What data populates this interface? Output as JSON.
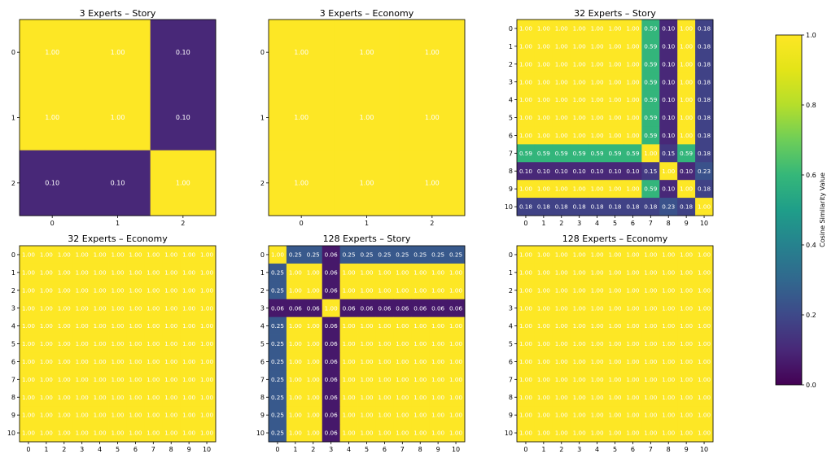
{
  "colormap": "viridis",
  "colors": {
    "low": "#440154",
    "mid": "#21918c",
    "high": "#fde725",
    "cell_text": "#ffffff"
  },
  "chart_data": [
    {
      "type": "heatmap",
      "title": "3 Experts – Story",
      "labels": [
        "0",
        "1",
        "2"
      ],
      "matrix": [
        [
          1.0,
          1.0,
          0.1
        ],
        [
          1.0,
          1.0,
          0.1
        ],
        [
          0.1,
          0.1,
          1.0
        ]
      ]
    },
    {
      "type": "heatmap",
      "title": "3 Experts – Economy",
      "labels": [
        "0",
        "1",
        "2"
      ],
      "matrix": [
        [
          1.0,
          1.0,
          1.0
        ],
        [
          1.0,
          1.0,
          1.0
        ],
        [
          1.0,
          1.0,
          1.0
        ]
      ]
    },
    {
      "type": "heatmap",
      "title": "32 Experts – Story",
      "labels": [
        "0",
        "1",
        "2",
        "3",
        "4",
        "5",
        "6",
        "7",
        "8",
        "9",
        "10"
      ],
      "matrix": [
        [
          1.0,
          1.0,
          1.0,
          1.0,
          1.0,
          1.0,
          1.0,
          0.59,
          0.1,
          1.0,
          0.18
        ],
        [
          1.0,
          1.0,
          1.0,
          1.0,
          1.0,
          1.0,
          1.0,
          0.59,
          0.1,
          1.0,
          0.18
        ],
        [
          1.0,
          1.0,
          1.0,
          1.0,
          1.0,
          1.0,
          1.0,
          0.59,
          0.1,
          1.0,
          0.18
        ],
        [
          1.0,
          1.0,
          1.0,
          1.0,
          1.0,
          1.0,
          1.0,
          0.59,
          0.1,
          1.0,
          0.18
        ],
        [
          1.0,
          1.0,
          1.0,
          1.0,
          1.0,
          1.0,
          1.0,
          0.59,
          0.1,
          1.0,
          0.18
        ],
        [
          1.0,
          1.0,
          1.0,
          1.0,
          1.0,
          1.0,
          1.0,
          0.59,
          0.1,
          1.0,
          0.18
        ],
        [
          1.0,
          1.0,
          1.0,
          1.0,
          1.0,
          1.0,
          1.0,
          0.59,
          0.1,
          1.0,
          0.18
        ],
        [
          0.59,
          0.59,
          0.59,
          0.59,
          0.59,
          0.59,
          0.59,
          1.0,
          0.15,
          0.59,
          0.18
        ],
        [
          0.1,
          0.1,
          0.1,
          0.1,
          0.1,
          0.1,
          0.1,
          0.15,
          1.0,
          0.1,
          0.23
        ],
        [
          1.0,
          1.0,
          1.0,
          1.0,
          1.0,
          1.0,
          1.0,
          0.59,
          0.1,
          1.0,
          0.18
        ],
        [
          0.18,
          0.18,
          0.18,
          0.18,
          0.18,
          0.18,
          0.18,
          0.18,
          0.23,
          0.18,
          1.0
        ]
      ]
    },
    {
      "type": "heatmap",
      "title": "32 Experts – Economy",
      "labels": [
        "0",
        "1",
        "2",
        "3",
        "4",
        "5",
        "6",
        "7",
        "8",
        "9",
        "10"
      ],
      "matrix": [
        [
          1.0,
          1.0,
          1.0,
          1.0,
          1.0,
          1.0,
          1.0,
          1.0,
          1.0,
          1.0,
          1.0
        ],
        [
          1.0,
          1.0,
          1.0,
          1.0,
          1.0,
          1.0,
          1.0,
          1.0,
          1.0,
          1.0,
          1.0
        ],
        [
          1.0,
          1.0,
          1.0,
          1.0,
          1.0,
          1.0,
          1.0,
          1.0,
          1.0,
          1.0,
          1.0
        ],
        [
          1.0,
          1.0,
          1.0,
          1.0,
          1.0,
          1.0,
          1.0,
          1.0,
          1.0,
          1.0,
          1.0
        ],
        [
          1.0,
          1.0,
          1.0,
          1.0,
          1.0,
          1.0,
          1.0,
          1.0,
          1.0,
          1.0,
          1.0
        ],
        [
          1.0,
          1.0,
          1.0,
          1.0,
          1.0,
          1.0,
          1.0,
          1.0,
          1.0,
          1.0,
          1.0
        ],
        [
          1.0,
          1.0,
          1.0,
          1.0,
          1.0,
          1.0,
          1.0,
          1.0,
          1.0,
          1.0,
          1.0
        ],
        [
          1.0,
          1.0,
          1.0,
          1.0,
          1.0,
          1.0,
          1.0,
          1.0,
          1.0,
          1.0,
          1.0
        ],
        [
          1.0,
          1.0,
          1.0,
          1.0,
          1.0,
          1.0,
          1.0,
          1.0,
          1.0,
          1.0,
          1.0
        ],
        [
          1.0,
          1.0,
          1.0,
          1.0,
          1.0,
          1.0,
          1.0,
          1.0,
          1.0,
          1.0,
          1.0
        ],
        [
          1.0,
          1.0,
          1.0,
          1.0,
          1.0,
          1.0,
          1.0,
          1.0,
          1.0,
          1.0,
          1.0
        ]
      ]
    },
    {
      "type": "heatmap",
      "title": "128 Experts – Story",
      "labels": [
        "0",
        "1",
        "2",
        "3",
        "4",
        "5",
        "6",
        "7",
        "8",
        "9",
        "10"
      ],
      "matrix": [
        [
          1.0,
          0.25,
          0.25,
          0.06,
          0.25,
          0.25,
          0.25,
          0.25,
          0.25,
          0.25,
          0.25
        ],
        [
          0.25,
          1.0,
          1.0,
          0.06,
          1.0,
          1.0,
          1.0,
          1.0,
          1.0,
          1.0,
          1.0
        ],
        [
          0.25,
          1.0,
          1.0,
          0.06,
          1.0,
          1.0,
          1.0,
          1.0,
          1.0,
          1.0,
          1.0
        ],
        [
          0.06,
          0.06,
          0.06,
          1.0,
          0.06,
          0.06,
          0.06,
          0.06,
          0.06,
          0.06,
          0.06
        ],
        [
          0.25,
          1.0,
          1.0,
          0.06,
          1.0,
          1.0,
          1.0,
          1.0,
          1.0,
          1.0,
          1.0
        ],
        [
          0.25,
          1.0,
          1.0,
          0.06,
          1.0,
          1.0,
          1.0,
          1.0,
          1.0,
          1.0,
          1.0
        ],
        [
          0.25,
          1.0,
          1.0,
          0.06,
          1.0,
          1.0,
          1.0,
          1.0,
          1.0,
          1.0,
          1.0
        ],
        [
          0.25,
          1.0,
          1.0,
          0.06,
          1.0,
          1.0,
          1.0,
          1.0,
          1.0,
          1.0,
          1.0
        ],
        [
          0.25,
          1.0,
          1.0,
          0.06,
          1.0,
          1.0,
          1.0,
          1.0,
          1.0,
          1.0,
          1.0
        ],
        [
          0.25,
          1.0,
          1.0,
          0.06,
          1.0,
          1.0,
          1.0,
          1.0,
          1.0,
          1.0,
          1.0
        ],
        [
          0.25,
          1.0,
          1.0,
          0.06,
          1.0,
          1.0,
          1.0,
          1.0,
          1.0,
          1.0,
          1.0
        ]
      ]
    },
    {
      "type": "heatmap",
      "title": "128 Experts – Economy",
      "labels": [
        "0",
        "1",
        "2",
        "3",
        "4",
        "5",
        "6",
        "7",
        "8",
        "9",
        "10"
      ],
      "matrix": [
        [
          1.0,
          1.0,
          1.0,
          1.0,
          1.0,
          1.0,
          1.0,
          1.0,
          1.0,
          1.0,
          1.0
        ],
        [
          1.0,
          1.0,
          1.0,
          1.0,
          1.0,
          1.0,
          1.0,
          1.0,
          1.0,
          1.0,
          1.0
        ],
        [
          1.0,
          1.0,
          1.0,
          1.0,
          1.0,
          1.0,
          1.0,
          1.0,
          1.0,
          1.0,
          1.0
        ],
        [
          1.0,
          1.0,
          1.0,
          1.0,
          1.0,
          1.0,
          1.0,
          1.0,
          1.0,
          1.0,
          1.0
        ],
        [
          1.0,
          1.0,
          1.0,
          1.0,
          1.0,
          1.0,
          1.0,
          1.0,
          1.0,
          1.0,
          1.0
        ],
        [
          1.0,
          1.0,
          1.0,
          1.0,
          1.0,
          1.0,
          1.0,
          1.0,
          1.0,
          1.0,
          1.0
        ],
        [
          1.0,
          1.0,
          1.0,
          1.0,
          1.0,
          1.0,
          1.0,
          1.0,
          1.0,
          1.0,
          1.0
        ],
        [
          1.0,
          1.0,
          1.0,
          1.0,
          1.0,
          1.0,
          1.0,
          1.0,
          1.0,
          1.0,
          1.0
        ],
        [
          1.0,
          1.0,
          1.0,
          1.0,
          1.0,
          1.0,
          1.0,
          1.0,
          1.0,
          1.0,
          1.0
        ],
        [
          1.0,
          1.0,
          1.0,
          1.0,
          1.0,
          1.0,
          1.0,
          1.0,
          1.0,
          1.0,
          1.0
        ],
        [
          1.0,
          1.0,
          1.0,
          1.0,
          1.0,
          1.0,
          1.0,
          1.0,
          1.0,
          1.0,
          1.0
        ]
      ]
    }
  ],
  "colorbar": {
    "label": "Cosine Similarity Value",
    "range": [
      0.0,
      1.0
    ],
    "ticks": [
      "0.0",
      "0.2",
      "0.4",
      "0.6",
      "0.8",
      "1.0"
    ]
  }
}
